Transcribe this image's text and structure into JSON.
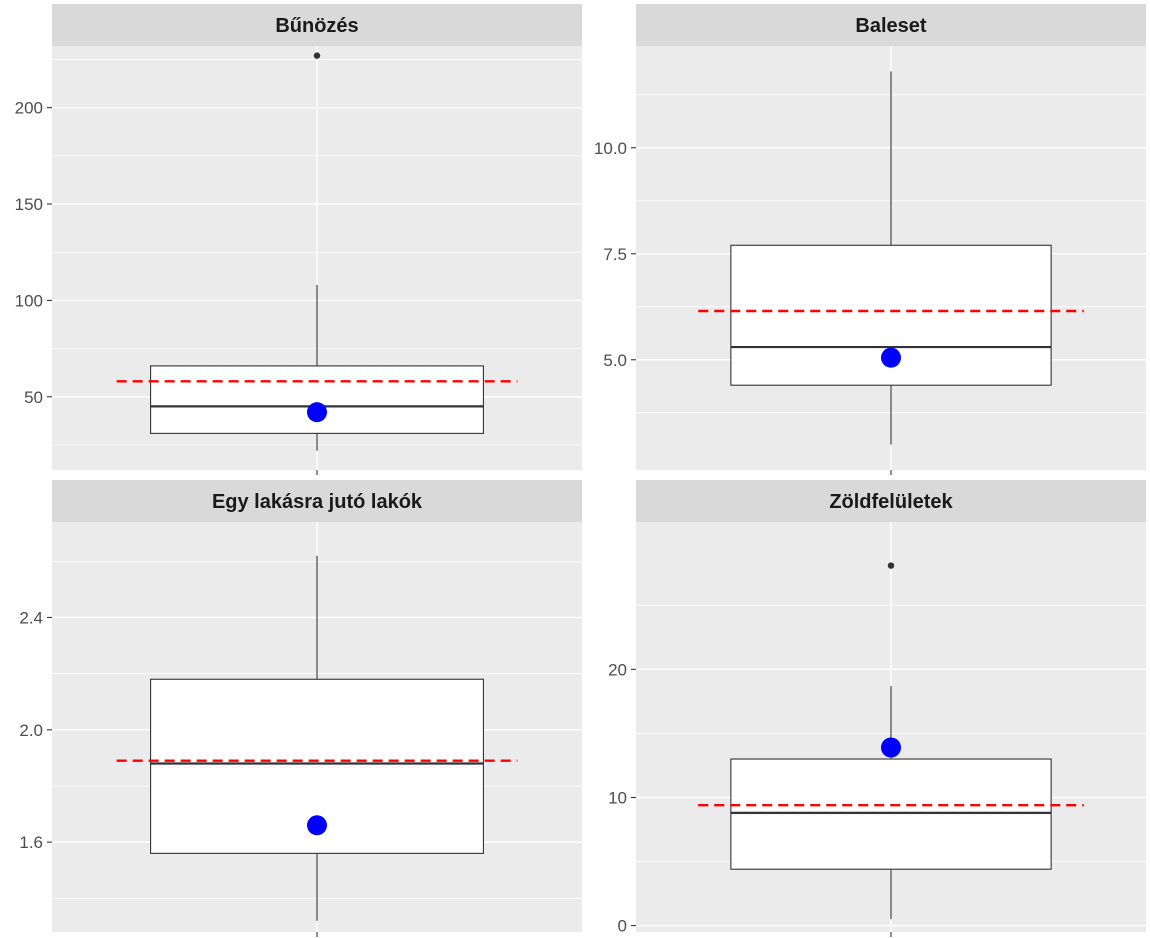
{
  "chart_data": [
    {
      "type": "boxplot",
      "title": "Bűnözés",
      "ylim": [
        12,
        232
      ],
      "yticks": [
        50,
        100,
        150,
        200
      ],
      "ytick_labels": [
        "50",
        "100",
        "150",
        "200"
      ],
      "box": {
        "whisker_low": 22,
        "q1": 31,
        "median": 45,
        "q3": 66,
        "whisker_high": 108
      },
      "outliers": [
        227
      ],
      "mean_line": 58,
      "highlight_point": 42
    },
    {
      "type": "boxplot",
      "title": "Baleset",
      "ylim": [
        2.4,
        12.4
      ],
      "yticks": [
        5.0,
        7.5,
        10.0
      ],
      "ytick_labels": [
        "5.0",
        "7.5",
        "10.0"
      ],
      "box": {
        "whisker_low": 3.0,
        "q1": 4.4,
        "median": 5.3,
        "q3": 7.7,
        "whisker_high": 11.8
      },
      "outliers": [],
      "mean_line": 6.15,
      "highlight_point": 5.05
    },
    {
      "type": "boxplot",
      "title": "Egy lakásra jutó lakók",
      "ylim": [
        1.28,
        2.74
      ],
      "yticks": [
        1.6,
        2.0,
        2.4
      ],
      "ytick_labels": [
        "1.6",
        "2.0",
        "2.4"
      ],
      "box": {
        "whisker_low": 1.32,
        "q1": 1.56,
        "median": 1.88,
        "q3": 2.18,
        "whisker_high": 2.62
      },
      "outliers": [],
      "mean_line": 1.89,
      "highlight_point": 1.66
    },
    {
      "type": "boxplot",
      "title": "Zöldfelületek",
      "ylim": [
        -0.5,
        31.5
      ],
      "yticks": [
        0,
        10,
        20
      ],
      "ytick_labels": [
        "0",
        "10",
        "20"
      ],
      "box": {
        "whisker_low": 0.5,
        "q1": 4.4,
        "median": 8.8,
        "q3": 13.0,
        "whisker_high": 18.7
      },
      "outliers": [
        28.1
      ],
      "mean_line": 9.4,
      "highlight_point": 13.9
    }
  ],
  "colors": {
    "panel_background": "#ebebeb",
    "strip_background": "#d9d9d9",
    "grid": "#ffffff",
    "box_fill": "#ffffff",
    "box_stroke": "#333333",
    "mean_line": "#ff0000",
    "highlight_point": "#0000ff",
    "tick_text": "#4d4d4d"
  }
}
